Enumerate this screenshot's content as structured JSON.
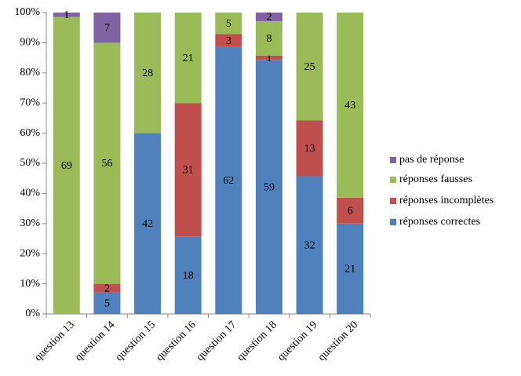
{
  "chart_data": {
    "type": "bar",
    "stacking": "percent",
    "categories": [
      "question 13",
      "question 14",
      "question 15",
      "question 16",
      "question 17",
      "question 18",
      "question 19",
      "question 20"
    ],
    "series": [
      {
        "name": "réponses correctes",
        "color": "#4f81bd",
        "values": [
          0,
          5,
          42,
          18,
          62,
          59,
          32,
          21
        ]
      },
      {
        "name": "réponses incomplètes",
        "color": "#c0504d",
        "values": [
          0,
          2,
          0,
          31,
          3,
          1,
          13,
          6
        ]
      },
      {
        "name": "réponses fausses",
        "color": "#9bbb59",
        "values": [
          69,
          56,
          28,
          21,
          5,
          8,
          25,
          43
        ]
      },
      {
        "name": "pas de réponse",
        "color": "#8064a2",
        "values": [
          1,
          7,
          0,
          0,
          0,
          2,
          0,
          0
        ]
      }
    ],
    "ylim": [
      0,
      100
    ],
    "yticks": [
      {
        "value": 0,
        "label": "0%"
      },
      {
        "value": 10,
        "label": "10%"
      },
      {
        "value": 20,
        "label": "20%"
      },
      {
        "value": 30,
        "label": "30%"
      },
      {
        "value": 40,
        "label": "40%"
      },
      {
        "value": 50,
        "label": "50%"
      },
      {
        "value": 60,
        "label": "60%"
      },
      {
        "value": 70,
        "label": "70%"
      },
      {
        "value": 80,
        "label": "80%"
      },
      {
        "value": 90,
        "label": "90%"
      },
      {
        "value": 100,
        "label": "100%"
      }
    ],
    "legend": "right"
  }
}
